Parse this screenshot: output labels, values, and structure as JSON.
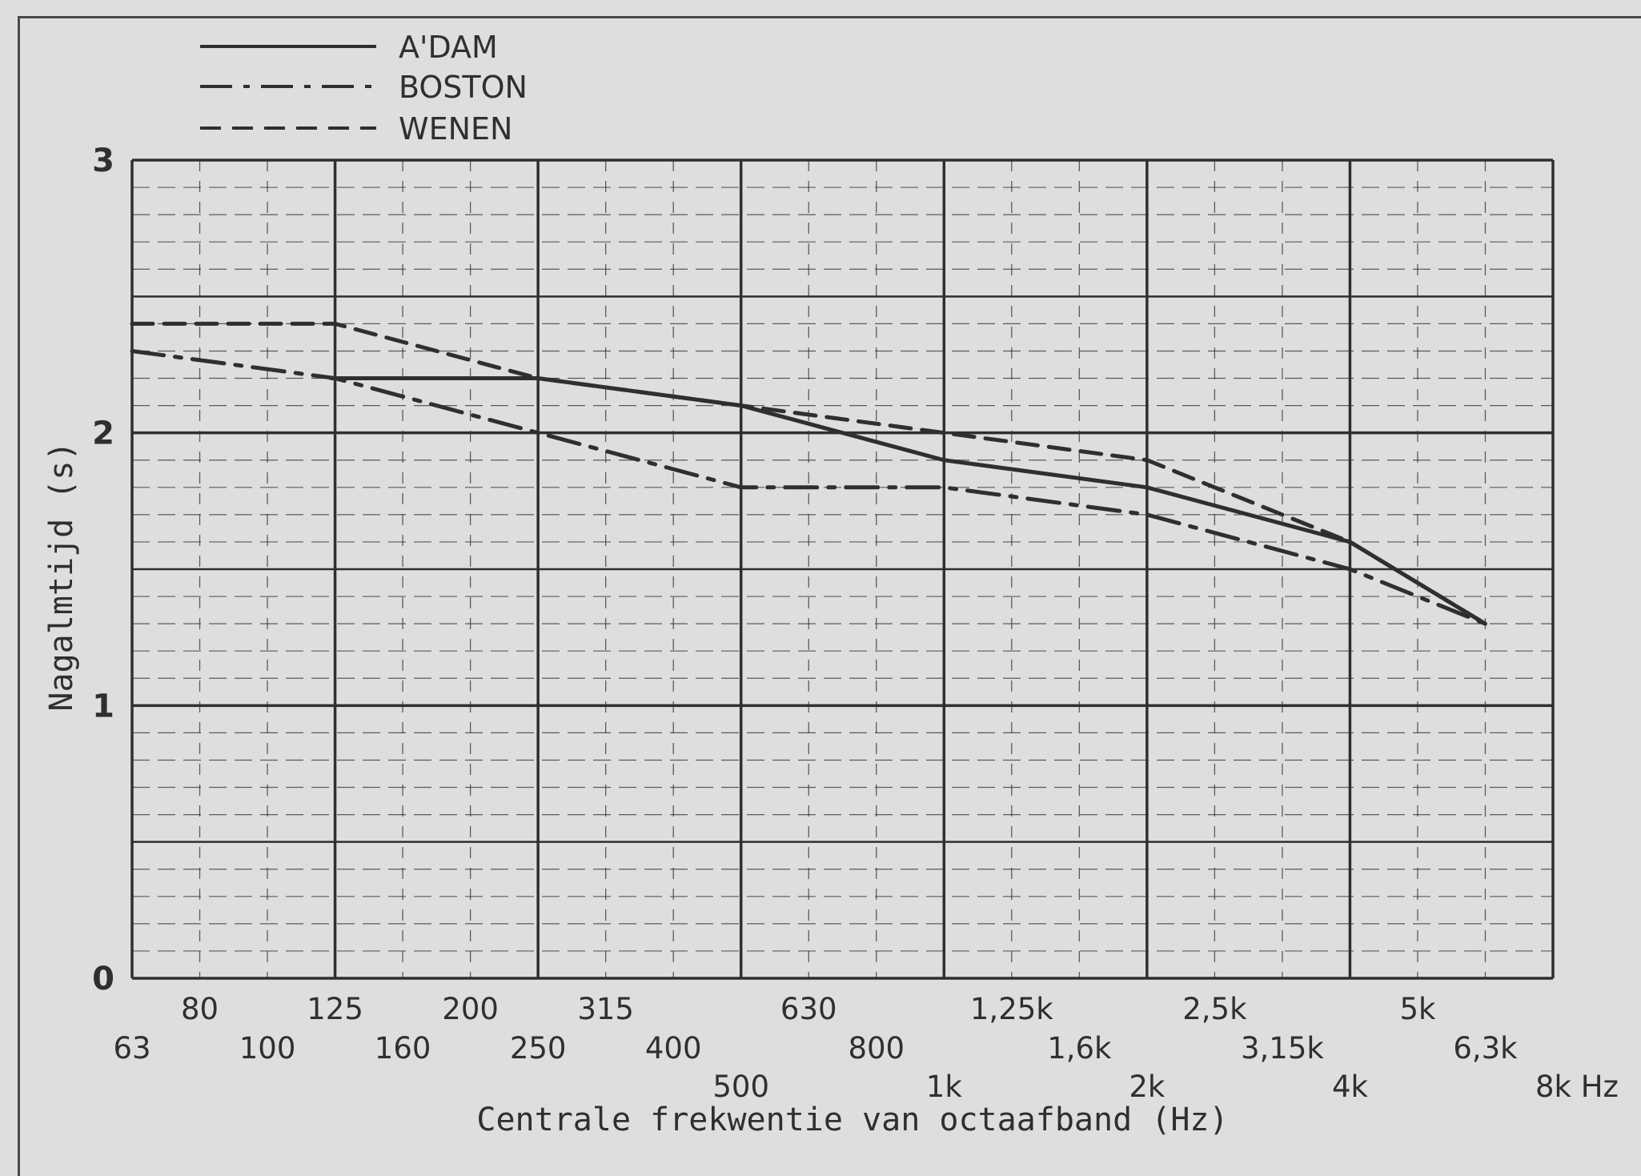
{
  "chart_data": {
    "type": "line",
    "xlabel": "Centrale frekwentie van octaafband (Hz)",
    "ylabel": "Nagalmtijd (s)",
    "ylim": [
      0,
      3
    ],
    "yticks": [
      "0",
      "1",
      "2",
      "3"
    ],
    "x_scale": "log (1/3 octave)",
    "x_ticks_row1": [
      "80",
      "125",
      "200",
      "315",
      "630",
      "1,25k",
      "2,5k",
      "5k"
    ],
    "x_ticks_row2": [
      "63",
      "100",
      "160",
      "250",
      "400",
      "800",
      "1,6k",
      "3,15k",
      "6,3k"
    ],
    "x_ticks_row3": [
      "500",
      "1k",
      "2k",
      "4k",
      "8k Hz"
    ],
    "grid": true,
    "legend_position": "top-left",
    "categories": [
      "63",
      "125",
      "250",
      "500",
      "1k",
      "2k",
      "4k",
      "6,3k"
    ],
    "series": [
      {
        "name": "A'DAM",
        "style": "solid",
        "values": [
          null,
          2.2,
          2.2,
          2.1,
          1.9,
          1.8,
          1.6,
          1.3
        ]
      },
      {
        "name": "BOSTON",
        "style": "dash-dot",
        "values": [
          2.3,
          2.2,
          2.0,
          1.8,
          1.8,
          1.7,
          1.5,
          1.3
        ]
      },
      {
        "name": "WENEN",
        "style": "dashed",
        "values": [
          2.4,
          2.4,
          2.2,
          2.1,
          2.0,
          1.9,
          1.6,
          1.3
        ]
      }
    ]
  },
  "colors": {
    "ink": "#2f2f2f",
    "paper": "#dedede"
  }
}
